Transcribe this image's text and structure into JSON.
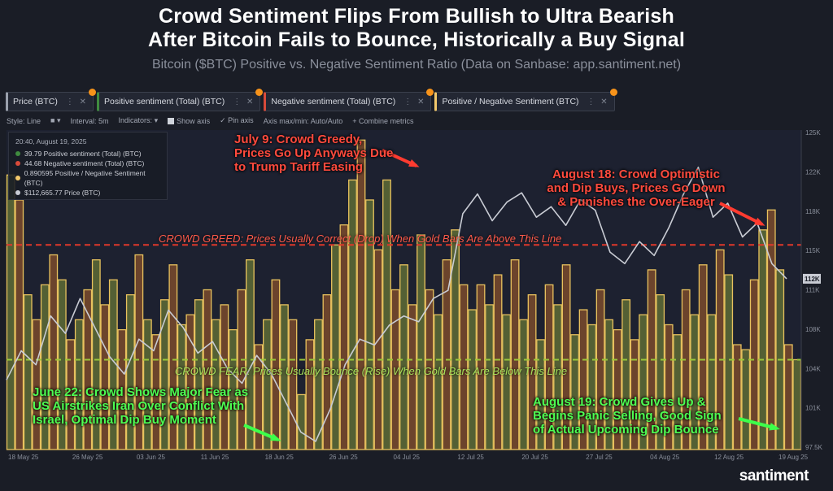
{
  "header": {
    "line1": "Crowd Sentiment Flips From Bullish to Ultra Bearish",
    "line2": "After Bitcoin Fails to Bounce, Historically a Buy Signal",
    "subtitle": "Bitcoin ($BTC) Positive vs. Negative Sentiment Ratio (Data on Sanbase: app.santiment.net)"
  },
  "tabs": [
    {
      "label": "Price (BTC)",
      "color": "#9aa0ac"
    },
    {
      "label": "Positive sentiment (Total) (BTC)",
      "color": "#3f8b3f"
    },
    {
      "label": "Negative sentiment (Total) (BTC)",
      "color": "#d84a3a"
    },
    {
      "label": "Positive / Negative Sentiment (BTC)",
      "color": "#f2c86b"
    }
  ],
  "toolbar": {
    "style": "Style: Line",
    "interval": "Interval: 5m",
    "indicators": "Indicators:",
    "show_axis": "Show axis",
    "pin_axis": "Pin axis",
    "axis_maxmin": "Axis max/min: Auto/Auto",
    "combine": "+ Combine metrics"
  },
  "legend": {
    "timestamp": "20:40, August 19, 2025",
    "rows": [
      {
        "text": "39.79 Positive sentiment (Total) (BTC)",
        "color": "#3f8b3f"
      },
      {
        "text": "44.68 Negative sentiment (Total) (BTC)",
        "color": "#d84a3a"
      },
      {
        "text": "0.890595 Positive / Negative Sentiment (BTC)",
        "color": "#f2c86b"
      },
      {
        "text": "$112,665.77 Price (BTC)",
        "color": "#c9ccd4"
      }
    ]
  },
  "annotations": {
    "july9": "July 9: Crowd Greedy, Prices Go Up Anyways Due to Trump Tariff Easing",
    "aug18": "August 18: Crowd Optimistic and Dip Buys, Prices Go Down & Punishes the Over-Eager",
    "june22": "June 22: Crowd Shows Major Fear as US Airstrikes Iran Over Conflict With Israel, Optimal Dip Buy Moment",
    "aug19": "August 19: Crowd Gives Up & Begins Panic Selling, Good Sign of Actual Upcoming Dip Bounce",
    "greed_line": "CROWD GREED: Prices Usually Correct (Drop) When Gold Bars Are Above This Line",
    "fear_line": "CROWD FEAR: Prices Usually Bounce (Rise) When Gold Bars Are Below This Line"
  },
  "brand": "santiment",
  "colors": {
    "greed": "#e0392b",
    "fear": "#9bc73a",
    "bars": "#e8c25e",
    "price": "#c9ccd4"
  },
  "chart_data": {
    "type": "line",
    "x_tick_labels": [
      "18 May 25",
      "26 May 25",
      "03 Jun 25",
      "11 Jun 25",
      "18 Jun 25",
      "26 Jun 25",
      "04 Jul 25",
      "12 Jul 25",
      "20 Jul 25",
      "27 Jul 25",
      "04 Aug 25",
      "12 Aug 25",
      "19 Aug 25"
    ],
    "y_tick_labels": [
      "125K",
      "122K",
      "118K",
      "115K",
      "111K",
      "108K",
      "104K",
      "101K",
      "97.5K"
    ],
    "ylim": [
      97500,
      125000
    ],
    "price_current_label": "112K",
    "price_series": {
      "name": "Price (BTC)",
      "values": [
        103500,
        106000,
        104800,
        109000,
        107500,
        110500,
        108000,
        105500,
        104000,
        107000,
        106000,
        109500,
        108000,
        105800,
        106800,
        104500,
        103200,
        105600,
        104000,
        101500,
        99000,
        98200,
        101000,
        104800,
        107000,
        106500,
        108200,
        109000,
        108500,
        110500,
        111200,
        117800,
        119500,
        117200,
        118800,
        119600,
        117500,
        118400,
        116800,
        119000,
        118100,
        114500,
        113500,
        115400,
        114200,
        116600,
        119500,
        121800,
        117500,
        118700,
        115800,
        117000,
        113500,
        112200
      ]
    },
    "ratio_bars": {
      "name": "Positive / Negative Sentiment (BTC)",
      "values": [
        2.75,
        2.5,
        1.55,
        1.3,
        1.65,
        1.95,
        1.7,
        1.1,
        1.3,
        1.6,
        1.9,
        1.45,
        1.7,
        1.2,
        1.55,
        1.95,
        1.3,
        1.15,
        1.5,
        1.85,
        1.25,
        1.35,
        1.5,
        1.6,
        1.3,
        1.45,
        1.2,
        1.6,
        1.9,
        1.05,
        1.3,
        1.7,
        1.45,
        1.3,
        0.55,
        1.1,
        1.3,
        1.55,
        2.05,
        2.25,
        2.7,
        3.1,
        2.5,
        2.0,
        2.7,
        1.6,
        1.85,
        1.45,
        2.15,
        1.6,
        1.35,
        1.9,
        2.2,
        1.65,
        1.4,
        1.65,
        1.45,
        1.75,
        1.35,
        1.9,
        1.3,
        1.55,
        1.1,
        1.65,
        1.45,
        1.85,
        1.15,
        1.4,
        1.25,
        1.6,
        1.3,
        1.2,
        1.5,
        1.1,
        1.35,
        1.8,
        1.55,
        1.25,
        1.15,
        1.6,
        1.35,
        1.85,
        1.35,
        2.0,
        1.75,
        1.05,
        1.0,
        1.7,
        2.2,
        2.4,
        1.8,
        1.05,
        0.9
      ]
    },
    "greed_threshold": 2.05,
    "fear_threshold": 0.9
  }
}
